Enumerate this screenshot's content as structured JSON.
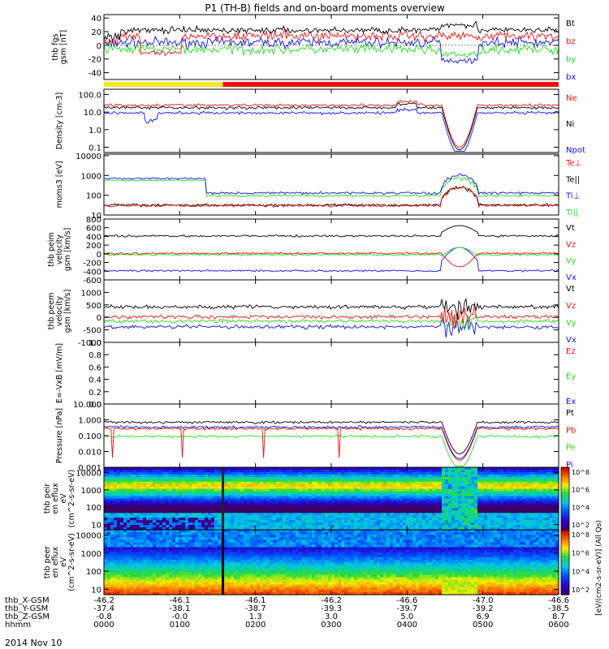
{
  "title": "P1 (TH-B) fields and on-board moments overview",
  "date_label": "2014 Nov 10",
  "colors": {
    "black": "#000000",
    "red": "#ee1111",
    "green": "#22dd22",
    "blue": "#1111ee",
    "yellow": "#f4e42a"
  },
  "chart_data": [
    {
      "type": "line",
      "panel": "fgs",
      "ylabel": "thb fgs gsm [nT]",
      "ylim": [
        -50,
        45
      ],
      "yticks": [
        "40",
        "20",
        "0",
        "-20",
        "-40"
      ],
      "ytick_values": [
        40,
        20,
        0,
        -20,
        -40
      ],
      "legend": [
        {
          "name": "Bt",
          "color": "black"
        },
        {
          "name": "bz",
          "color": "red"
        },
        {
          "name": "by",
          "color": "green"
        },
        {
          "name": "bx",
          "color": "blue"
        }
      ],
      "series_base": {
        "Bt": 25,
        "bz": 10,
        "by": -10,
        "bx": 5
      }
    },
    {
      "type": "line",
      "panel": "density",
      "ylabel": "Density [cm-3]",
      "scale": "log",
      "ylim": [
        0.05,
        200
      ],
      "yticks": [
        "100.0",
        "10.0",
        "1.0",
        "0.1"
      ],
      "ytick_values": [
        100,
        10,
        1,
        0.1
      ],
      "legend": [
        {
          "name": "Ne",
          "color": "red"
        },
        {
          "name": "Ni",
          "color": "black"
        },
        {
          "name": "Npot",
          "color": "blue"
        }
      ]
    },
    {
      "type": "line",
      "panel": "temperature",
      "ylabel": "moms3 [eV]",
      "scale": "log",
      "ylim": [
        10,
        12000
      ],
      "yticks": [
        "10000",
        "1000",
        "100",
        "10"
      ],
      "ytick_values": [
        10000,
        1000,
        100,
        10
      ],
      "legend": [
        {
          "name": "Te⊥",
          "color": "red"
        },
        {
          "name": "Te||",
          "color": "black"
        },
        {
          "name": "Ti⊥",
          "color": "blue"
        },
        {
          "name": "Ti||",
          "color": "green"
        }
      ]
    },
    {
      "type": "line",
      "panel": "ion_velocity",
      "ylabel": "thb peim velocity gsm [km/s]",
      "ylim": [
        -600,
        800
      ],
      "yticks": [
        "800",
        "600",
        "400",
        "200",
        "0",
        "-200",
        "-400",
        "-600"
      ],
      "ytick_values": [
        800,
        600,
        400,
        200,
        0,
        -200,
        -400,
        -600
      ],
      "legend": [
        {
          "name": "Vt",
          "color": "black"
        },
        {
          "name": "Vz",
          "color": "red"
        },
        {
          "name": "Vy",
          "color": "green"
        },
        {
          "name": "Vx",
          "color": "blue"
        }
      ]
    },
    {
      "type": "line",
      "panel": "electron_velocity",
      "ylabel": "thb peem velocity gsm [km/s]",
      "ylim": [
        -1000,
        1500
      ],
      "yticks": [
        "1000",
        "500",
        "0",
        "-500",
        "-1000"
      ],
      "ytick_values": [
        1000,
        500,
        0,
        -500,
        -1000
      ],
      "legend": [
        {
          "name": "Vt",
          "color": "black"
        },
        {
          "name": "Vz",
          "color": "red"
        },
        {
          "name": "Vy",
          "color": "green"
        },
        {
          "name": "Vx",
          "color": "blue"
        }
      ]
    },
    {
      "type": "line",
      "panel": "efield",
      "ylabel": "E=-VxB [mV/m]",
      "ylim": [
        0,
        1
      ],
      "yticks": [
        "1.0",
        "0.8",
        "0.6",
        "0.4",
        "0.2",
        "0.0"
      ],
      "ytick_values": [
        1.0,
        0.8,
        0.6,
        0.4,
        0.2,
        0.0
      ],
      "legend": [
        {
          "name": "Ez",
          "color": "red"
        },
        {
          "name": "Ey",
          "color": "green"
        },
        {
          "name": "Ex",
          "color": "blue"
        }
      ]
    },
    {
      "type": "line",
      "panel": "pressure",
      "ylabel": "Pressure [nPa]",
      "scale": "log",
      "ylim": [
        0.001,
        10
      ],
      "yticks": [
        "10.000",
        "1.000",
        "0.100",
        "0.010",
        "0.001"
      ],
      "ytick_values": [
        10,
        1,
        0.1,
        0.01,
        0.001
      ],
      "legend": [
        {
          "name": "Pt",
          "color": "black"
        },
        {
          "name": "Pb",
          "color": "red"
        },
        {
          "name": "Pe",
          "color": "green"
        },
        {
          "name": "Pi",
          "color": "blue"
        }
      ]
    },
    {
      "type": "heatmap",
      "panel": "peir_spectrogram",
      "ylabel": "thb peir en eflux eV (cm^2-s-sr-eV)",
      "scale": "log",
      "ylim": [
        5,
        20000
      ],
      "yticks": [
        "10000",
        "1000",
        "100",
        "10"
      ],
      "ytick_values": [
        10000,
        1000,
        100,
        10
      ]
    },
    {
      "type": "heatmap",
      "panel": "peer_spectrogram",
      "ylabel": "thb peer en eflux eV (cm^2-s-sr-eV)",
      "scale": "log",
      "ylim": [
        5,
        20000
      ],
      "yticks": [
        "10000",
        "1000",
        "100",
        "10"
      ],
      "ytick_values": [
        10000,
        1000,
        100,
        10
      ]
    }
  ],
  "colorbar": {
    "label": "[eV/(cm2-s-sr-eV)] (All Qs)",
    "ticks_upper": [
      "10^8",
      "10^6",
      "10^4",
      "10^2"
    ],
    "ticks_lower": [
      "10^8",
      "10^6",
      "10^4",
      "10^2"
    ]
  },
  "x_axis": {
    "row_labels": [
      "thb_X-GSM",
      "thb_Y-GSM",
      "thb_Z-GSM",
      "hhmm"
    ],
    "columns": [
      [
        "-46.2",
        "-37.4",
        "-0.8",
        "0000"
      ],
      [
        "-46.1",
        "-38.1",
        "-0.0",
        "0100"
      ],
      [
        "-46.1",
        "-38.7",
        "1.3",
        "0200"
      ],
      [
        "-46.2",
        "-39.3",
        "3.0",
        "0300"
      ],
      [
        "-46.6",
        "-39.7",
        "5.0",
        "0400"
      ],
      [
        "-47.0",
        "-39.2",
        "6.9",
        "0500"
      ],
      [
        "-46.6",
        "-38.5",
        "8.7",
        "0600"
      ]
    ]
  }
}
